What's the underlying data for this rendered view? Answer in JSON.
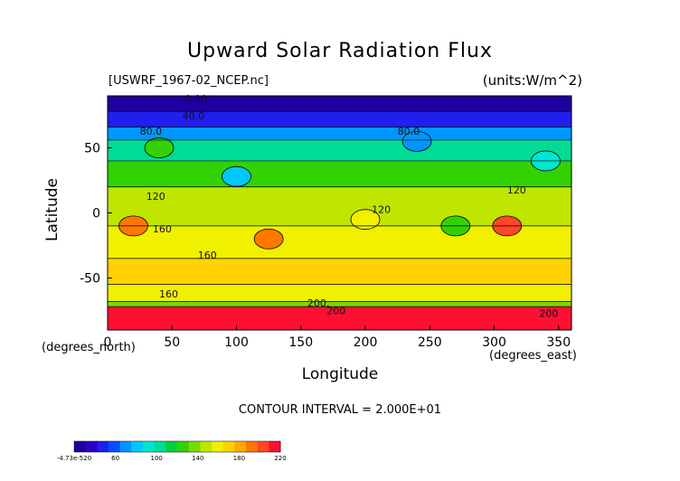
{
  "chart_data": {
    "type": "heatmap",
    "title": "Upward Solar Radiation Flux",
    "file_label": "[USWRF_1967-02_NCEP.nc]",
    "units_label": "(units:W/m^2)",
    "xlabel": "Longitude",
    "ylabel": "Latitude",
    "x_units": "(degrees_east)",
    "y_units": "(degrees_north)",
    "xlim": [
      0,
      360
    ],
    "ylim": [
      -90,
      90
    ],
    "x_ticks": [
      "0",
      "50",
      "100",
      "150",
      "200",
      "250",
      "300",
      "350"
    ],
    "y_ticks": [
      "50",
      "0",
      "-50"
    ],
    "contour_interval_text": "CONTOUR INTERVAL = 2.000E+01",
    "contour_labels": [
      "0.00",
      "40.0",
      "80.0",
      "80.0",
      "120",
      "120",
      "120",
      "160",
      "160",
      "160",
      "200.",
      "200",
      "200"
    ],
    "colorbar": {
      "tick_labels": [
        "-4.73e-520",
        "60",
        "100",
        "140",
        "180",
        "220"
      ],
      "colors": [
        "#1e00a0",
        "#2d00c8",
        "#1f1ff0",
        "#0050ff",
        "#0096ff",
        "#00c8ff",
        "#00e6d2",
        "#00dc96",
        "#00d23c",
        "#32d200",
        "#78dc00",
        "#bee600",
        "#f0f000",
        "#ffd200",
        "#ffaa00",
        "#ff7800",
        "#ff4628",
        "#ff0f32"
      ]
    },
    "lat_bands": [
      {
        "lat": [
          78,
          90
        ],
        "value": 0
      },
      {
        "lat": [
          66,
          78
        ],
        "value": 30
      },
      {
        "lat": [
          56,
          66
        ],
        "value": 60
      },
      {
        "lat": [
          40,
          56
        ],
        "value": 90
      },
      {
        "lat": [
          20,
          40
        ],
        "value": 110
      },
      {
        "lat": [
          -10,
          20
        ],
        "value": 135
      },
      {
        "lat": [
          -35,
          -10
        ],
        "value": 150
      },
      {
        "lat": [
          -55,
          -35
        ],
        "value": 170
      },
      {
        "lat": [
          -68,
          -55
        ],
        "value": 150
      },
      {
        "lat": [
          -72,
          -68
        ],
        "value": 130
      },
      {
        "lat": [
          -90,
          -72
        ],
        "value": 210
      }
    ],
    "features": [
      {
        "lon": 100,
        "lat": 28,
        "value": 70
      },
      {
        "lon": 20,
        "lat": -10,
        "value": 190
      },
      {
        "lon": 125,
        "lat": -20,
        "value": 195
      },
      {
        "lon": 310,
        "lat": -10,
        "value": 205
      },
      {
        "lon": 200,
        "lat": -5,
        "value": 155
      },
      {
        "lon": 270,
        "lat": -10,
        "value": 110
      },
      {
        "lon": 240,
        "lat": 55,
        "value": 60
      },
      {
        "lon": 340,
        "lat": 40,
        "value": 80
      },
      {
        "lon": 40,
        "lat": 50,
        "value": 120
      }
    ]
  }
}
